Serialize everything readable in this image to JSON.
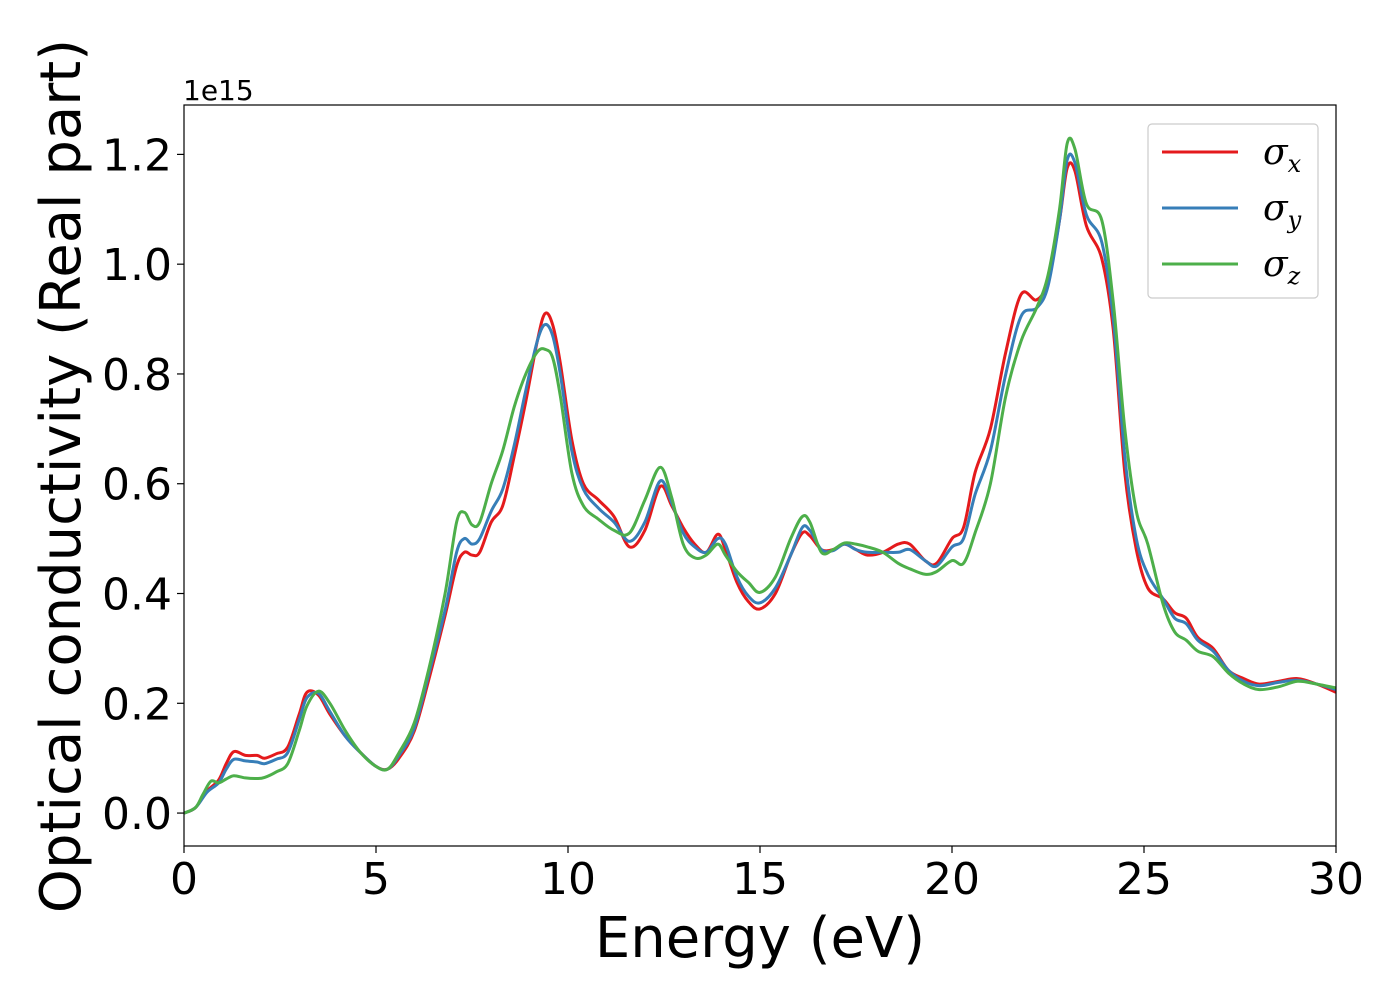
{
  "chart_data": {
    "type": "line",
    "title": "",
    "xlabel": "Energy (eV)",
    "ylabel": "Optical conductivity (Real part)",
    "y_offset_label": "1e15",
    "xlim": [
      0,
      30
    ],
    "ylim": [
      -0.06,
      1.29
    ],
    "x_ticks": [
      0,
      5,
      10,
      15,
      20,
      25,
      30
    ],
    "y_ticks": [
      0.0,
      0.2,
      0.4,
      0.6,
      0.8,
      1.0,
      1.2
    ],
    "x_tick_labels": [
      "0",
      "5",
      "10",
      "15",
      "20",
      "25",
      "30"
    ],
    "y_tick_labels": [
      "0.0",
      "0.2",
      "0.4",
      "0.6",
      "0.8",
      "1.0",
      "1.2"
    ],
    "grid": false,
    "legend_position": "top-right",
    "series": [
      {
        "name": "σx",
        "symbol": "σ",
        "subscript": "x",
        "color": "#e41a1c",
        "points": [
          [
            0,
            0
          ],
          [
            0.3,
            0.01
          ],
          [
            0.6,
            0.04
          ],
          [
            0.9,
            0.06
          ],
          [
            1.1,
            0.09
          ],
          [
            1.3,
            0.112
          ],
          [
            1.6,
            0.105
          ],
          [
            1.9,
            0.105
          ],
          [
            2.1,
            0.1
          ],
          [
            2.4,
            0.108
          ],
          [
            2.7,
            0.12
          ],
          [
            3.0,
            0.18
          ],
          [
            3.2,
            0.22
          ],
          [
            3.5,
            0.215
          ],
          [
            3.8,
            0.18
          ],
          [
            4.2,
            0.14
          ],
          [
            4.6,
            0.11
          ],
          [
            5.0,
            0.085
          ],
          [
            5.3,
            0.08
          ],
          [
            5.6,
            0.1
          ],
          [
            6.0,
            0.15
          ],
          [
            6.4,
            0.25
          ],
          [
            6.8,
            0.36
          ],
          [
            7.1,
            0.45
          ],
          [
            7.3,
            0.475
          ],
          [
            7.5,
            0.47
          ],
          [
            7.7,
            0.475
          ],
          [
            8.0,
            0.53
          ],
          [
            8.3,
            0.56
          ],
          [
            8.6,
            0.65
          ],
          [
            8.9,
            0.75
          ],
          [
            9.2,
            0.86
          ],
          [
            9.4,
            0.91
          ],
          [
            9.6,
            0.89
          ],
          [
            9.8,
            0.82
          ],
          [
            10.1,
            0.68
          ],
          [
            10.4,
            0.6
          ],
          [
            10.8,
            0.57
          ],
          [
            11.2,
            0.54
          ],
          [
            11.6,
            0.485
          ],
          [
            12.0,
            0.515
          ],
          [
            12.4,
            0.595
          ],
          [
            12.7,
            0.56
          ],
          [
            13.0,
            0.52
          ],
          [
            13.3,
            0.49
          ],
          [
            13.6,
            0.475
          ],
          [
            13.9,
            0.508
          ],
          [
            14.1,
            0.48
          ],
          [
            14.4,
            0.42
          ],
          [
            14.7,
            0.385
          ],
          [
            15.0,
            0.372
          ],
          [
            15.4,
            0.4
          ],
          [
            15.8,
            0.47
          ],
          [
            16.1,
            0.51
          ],
          [
            16.3,
            0.505
          ],
          [
            16.6,
            0.48
          ],
          [
            16.9,
            0.48
          ],
          [
            17.2,
            0.49
          ],
          [
            17.5,
            0.48
          ],
          [
            17.8,
            0.47
          ],
          [
            18.2,
            0.475
          ],
          [
            18.6,
            0.49
          ],
          [
            18.9,
            0.49
          ],
          [
            19.3,
            0.46
          ],
          [
            19.6,
            0.455
          ],
          [
            20.0,
            0.5
          ],
          [
            20.3,
            0.52
          ],
          [
            20.6,
            0.62
          ],
          [
            21.0,
            0.7
          ],
          [
            21.4,
            0.84
          ],
          [
            21.8,
            0.945
          ],
          [
            22.2,
            0.935
          ],
          [
            22.5,
            0.97
          ],
          [
            22.8,
            1.08
          ],
          [
            23.0,
            1.175
          ],
          [
            23.2,
            1.17
          ],
          [
            23.5,
            1.07
          ],
          [
            23.9,
            1.01
          ],
          [
            24.2,
            0.88
          ],
          [
            24.5,
            0.62
          ],
          [
            24.8,
            0.48
          ],
          [
            25.1,
            0.41
          ],
          [
            25.5,
            0.39
          ],
          [
            25.8,
            0.365
          ],
          [
            26.1,
            0.355
          ],
          [
            26.4,
            0.32
          ],
          [
            26.8,
            0.3
          ],
          [
            27.2,
            0.26
          ],
          [
            27.6,
            0.245
          ],
          [
            28.0,
            0.235
          ],
          [
            28.5,
            0.24
          ],
          [
            29.0,
            0.245
          ],
          [
            29.5,
            0.235
          ],
          [
            30.0,
            0.22
          ]
        ]
      },
      {
        "name": "σy",
        "symbol": "σ",
        "subscript": "y",
        "color": "#377eb8",
        "points": [
          [
            0,
            0
          ],
          [
            0.3,
            0.01
          ],
          [
            0.6,
            0.038
          ],
          [
            0.9,
            0.055
          ],
          [
            1.1,
            0.08
          ],
          [
            1.3,
            0.098
          ],
          [
            1.6,
            0.095
          ],
          [
            1.9,
            0.093
          ],
          [
            2.1,
            0.09
          ],
          [
            2.4,
            0.098
          ],
          [
            2.7,
            0.11
          ],
          [
            3.0,
            0.17
          ],
          [
            3.2,
            0.21
          ],
          [
            3.5,
            0.218
          ],
          [
            3.8,
            0.185
          ],
          [
            4.2,
            0.14
          ],
          [
            4.6,
            0.11
          ],
          [
            5.0,
            0.085
          ],
          [
            5.3,
            0.08
          ],
          [
            5.6,
            0.105
          ],
          [
            6.0,
            0.155
          ],
          [
            6.4,
            0.26
          ],
          [
            6.8,
            0.37
          ],
          [
            7.1,
            0.475
          ],
          [
            7.3,
            0.5
          ],
          [
            7.5,
            0.49
          ],
          [
            7.7,
            0.5
          ],
          [
            8.0,
            0.55
          ],
          [
            8.3,
            0.59
          ],
          [
            8.6,
            0.67
          ],
          [
            8.9,
            0.77
          ],
          [
            9.2,
            0.86
          ],
          [
            9.4,
            0.89
          ],
          [
            9.6,
            0.87
          ],
          [
            9.8,
            0.8
          ],
          [
            10.1,
            0.66
          ],
          [
            10.4,
            0.59
          ],
          [
            10.8,
            0.555
          ],
          [
            11.2,
            0.53
          ],
          [
            11.6,
            0.495
          ],
          [
            12.0,
            0.53
          ],
          [
            12.4,
            0.605
          ],
          [
            12.7,
            0.565
          ],
          [
            13.0,
            0.51
          ],
          [
            13.3,
            0.485
          ],
          [
            13.6,
            0.475
          ],
          [
            13.9,
            0.5
          ],
          [
            14.1,
            0.49
          ],
          [
            14.4,
            0.43
          ],
          [
            14.7,
            0.395
          ],
          [
            15.0,
            0.383
          ],
          [
            15.4,
            0.41
          ],
          [
            15.8,
            0.47
          ],
          [
            16.1,
            0.52
          ],
          [
            16.3,
            0.515
          ],
          [
            16.6,
            0.48
          ],
          [
            16.9,
            0.478
          ],
          [
            17.2,
            0.49
          ],
          [
            17.5,
            0.48
          ],
          [
            17.8,
            0.475
          ],
          [
            18.2,
            0.475
          ],
          [
            18.6,
            0.475
          ],
          [
            18.9,
            0.48
          ],
          [
            19.3,
            0.46
          ],
          [
            19.6,
            0.45
          ],
          [
            20.0,
            0.485
          ],
          [
            20.3,
            0.5
          ],
          [
            20.6,
            0.58
          ],
          [
            21.0,
            0.66
          ],
          [
            21.4,
            0.8
          ],
          [
            21.8,
            0.905
          ],
          [
            22.2,
            0.92
          ],
          [
            22.5,
            0.96
          ],
          [
            22.8,
            1.08
          ],
          [
            23.0,
            1.19
          ],
          [
            23.2,
            1.185
          ],
          [
            23.5,
            1.09
          ],
          [
            23.9,
            1.04
          ],
          [
            24.2,
            0.9
          ],
          [
            24.5,
            0.65
          ],
          [
            24.8,
            0.5
          ],
          [
            25.1,
            0.435
          ],
          [
            25.5,
            0.39
          ],
          [
            25.8,
            0.355
          ],
          [
            26.1,
            0.345
          ],
          [
            26.4,
            0.315
          ],
          [
            26.8,
            0.295
          ],
          [
            27.2,
            0.26
          ],
          [
            27.6,
            0.24
          ],
          [
            28.0,
            0.232
          ],
          [
            28.5,
            0.238
          ],
          [
            29.0,
            0.242
          ],
          [
            29.5,
            0.235
          ],
          [
            30.0,
            0.225
          ]
        ]
      },
      {
        "name": "σz",
        "symbol": "σ",
        "subscript": "z",
        "color": "#4daf4a",
        "points": [
          [
            0,
            0
          ],
          [
            0.3,
            0.01
          ],
          [
            0.5,
            0.035
          ],
          [
            0.7,
            0.058
          ],
          [
            0.9,
            0.055
          ],
          [
            1.1,
            0.062
          ],
          [
            1.3,
            0.068
          ],
          [
            1.6,
            0.064
          ],
          [
            1.9,
            0.063
          ],
          [
            2.1,
            0.065
          ],
          [
            2.4,
            0.075
          ],
          [
            2.7,
            0.09
          ],
          [
            3.0,
            0.15
          ],
          [
            3.2,
            0.195
          ],
          [
            3.5,
            0.222
          ],
          [
            3.8,
            0.2
          ],
          [
            4.2,
            0.15
          ],
          [
            4.6,
            0.11
          ],
          [
            5.0,
            0.085
          ],
          [
            5.3,
            0.08
          ],
          [
            5.6,
            0.11
          ],
          [
            6.0,
            0.165
          ],
          [
            6.4,
            0.27
          ],
          [
            6.8,
            0.4
          ],
          [
            7.1,
            0.53
          ],
          [
            7.3,
            0.548
          ],
          [
            7.5,
            0.525
          ],
          [
            7.7,
            0.53
          ],
          [
            8.0,
            0.6
          ],
          [
            8.3,
            0.66
          ],
          [
            8.6,
            0.74
          ],
          [
            8.9,
            0.8
          ],
          [
            9.2,
            0.84
          ],
          [
            9.4,
            0.845
          ],
          [
            9.6,
            0.83
          ],
          [
            9.8,
            0.76
          ],
          [
            10.1,
            0.62
          ],
          [
            10.4,
            0.56
          ],
          [
            10.8,
            0.535
          ],
          [
            11.2,
            0.515
          ],
          [
            11.6,
            0.51
          ],
          [
            12.0,
            0.57
          ],
          [
            12.4,
            0.63
          ],
          [
            12.7,
            0.575
          ],
          [
            13.0,
            0.49
          ],
          [
            13.3,
            0.465
          ],
          [
            13.6,
            0.47
          ],
          [
            13.9,
            0.49
          ],
          [
            14.1,
            0.47
          ],
          [
            14.4,
            0.44
          ],
          [
            14.7,
            0.42
          ],
          [
            15.0,
            0.402
          ],
          [
            15.4,
            0.43
          ],
          [
            15.8,
            0.5
          ],
          [
            16.1,
            0.54
          ],
          [
            16.3,
            0.53
          ],
          [
            16.6,
            0.475
          ],
          [
            16.9,
            0.48
          ],
          [
            17.2,
            0.492
          ],
          [
            17.5,
            0.49
          ],
          [
            17.8,
            0.485
          ],
          [
            18.2,
            0.475
          ],
          [
            18.6,
            0.455
          ],
          [
            18.9,
            0.445
          ],
          [
            19.3,
            0.435
          ],
          [
            19.6,
            0.44
          ],
          [
            20.0,
            0.46
          ],
          [
            20.3,
            0.455
          ],
          [
            20.6,
            0.51
          ],
          [
            21.0,
            0.6
          ],
          [
            21.4,
            0.76
          ],
          [
            21.8,
            0.86
          ],
          [
            22.2,
            0.92
          ],
          [
            22.5,
            0.98
          ],
          [
            22.8,
            1.1
          ],
          [
            23.0,
            1.22
          ],
          [
            23.2,
            1.21
          ],
          [
            23.5,
            1.11
          ],
          [
            23.9,
            1.08
          ],
          [
            24.2,
            0.93
          ],
          [
            24.5,
            0.7
          ],
          [
            24.8,
            0.55
          ],
          [
            25.1,
            0.49
          ],
          [
            25.5,
            0.38
          ],
          [
            25.8,
            0.33
          ],
          [
            26.1,
            0.315
          ],
          [
            26.4,
            0.295
          ],
          [
            26.8,
            0.285
          ],
          [
            27.2,
            0.255
          ],
          [
            27.6,
            0.235
          ],
          [
            28.0,
            0.225
          ],
          [
            28.5,
            0.23
          ],
          [
            29.0,
            0.24
          ],
          [
            29.5,
            0.235
          ],
          [
            30.0,
            0.228
          ]
        ]
      }
    ]
  }
}
